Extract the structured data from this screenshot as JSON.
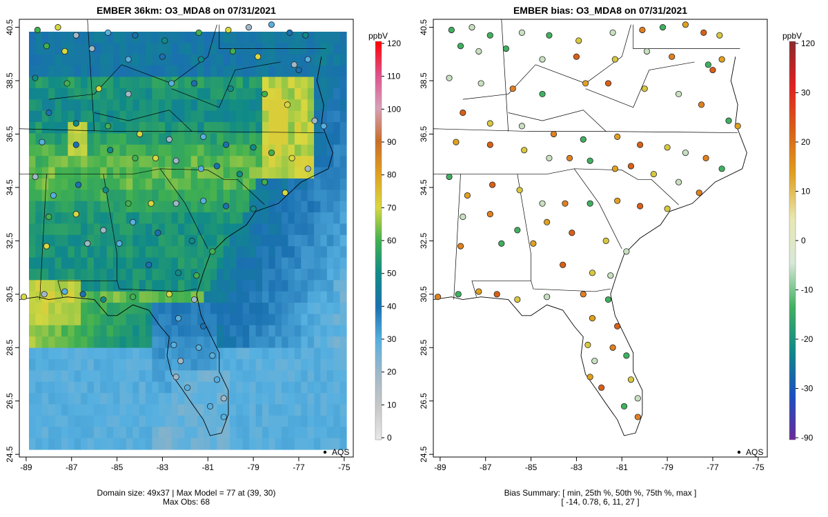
{
  "left_panel": {
    "title": "EMBER 36km: O3_MDA8 on 07/31/2021",
    "footer_line1": "Domain size: 49x37 | Max Model = 77 at (39, 30)",
    "footer_line2": "Max Obs: 68",
    "legend_label": "AQS",
    "colorbar": {
      "unit": "ppbV",
      "ticks": [
        "120",
        "110",
        "100",
        "90",
        "80",
        "70",
        "60",
        "50",
        "40",
        "30",
        "20",
        "10",
        "0"
      ],
      "colors": [
        "#ff0000",
        "#e0508a",
        "#d8a0b8",
        "#c86d2a",
        "#e0a020",
        "#d8d840",
        "#40b050",
        "#108a88",
        "#1a70b0",
        "#56b0e0",
        "#a0b8c8",
        "#c8c8c8",
        "#e8e8e8"
      ]
    }
  },
  "right_panel": {
    "title": "EMBER bias: O3_MDA8 on 07/31/2021",
    "footer_line1": "Bias Summary: [ min, 25th %, 50th %, 75th %, max ]",
    "footer_line2": "[ -14,   0.78,   6,   11,   27 ]",
    "legend_label": "AQS",
    "colorbar": {
      "unit": "ppbV",
      "ticks": [
        "120",
        "30",
        "20",
        "10",
        "0",
        "-10",
        "-20",
        "-30",
        "-90"
      ],
      "colors": [
        "#8b2a2a",
        "#e02020",
        "#d86018",
        "#e0a020",
        "#e8e8b0",
        "#d8e8d8",
        "#40b060",
        "#108888",
        "#1a50c0",
        "#6a2a9a"
      ]
    }
  },
  "axes": {
    "x_ticks": [
      "-89",
      "-87",
      "-85",
      "-83",
      "-81",
      "-79",
      "-77",
      "-75"
    ],
    "y_ticks": [
      "40.5",
      "38.5",
      "36.5",
      "34.5",
      "32.5",
      "30.5",
      "28.5",
      "26.5",
      "24.5"
    ],
    "lon_range": [
      -89.3,
      -74.6
    ],
    "lat_range": [
      24.4,
      40.8
    ]
  },
  "map_data": {
    "grid_ncols": 49,
    "grid_nrows": 37,
    "model_max_ppbv": 77,
    "model_max_cell": [
      39,
      30
    ],
    "obs_max_ppbv": 68,
    "bias_stats": {
      "min": -14,
      "p25": 0.78,
      "p50": 6,
      "p75": 11,
      "max": 27
    }
  }
}
